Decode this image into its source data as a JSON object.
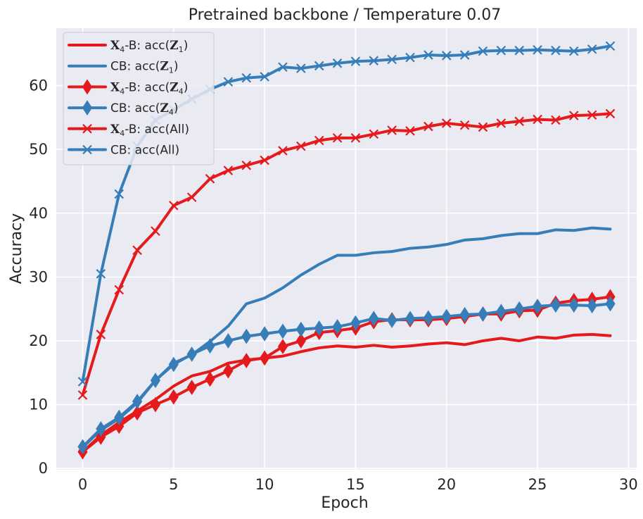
{
  "chart_data": {
    "type": "line",
    "title": "Pretrained backbone / Temperature 0.07",
    "xlabel": "Epoch",
    "ylabel": "Accuracy",
    "xlim": [
      -1.45,
      30.45
    ],
    "ylim": [
      -0.2,
      69
    ],
    "xticks": [
      0,
      5,
      10,
      15,
      20,
      25,
      30
    ],
    "yticks": [
      0,
      10,
      20,
      30,
      40,
      50,
      60
    ],
    "grid": true,
    "legend_position": "top-left",
    "x": [
      0,
      1,
      2,
      3,
      4,
      5,
      6,
      7,
      8,
      9,
      10,
      11,
      12,
      13,
      14,
      15,
      16,
      17,
      18,
      19,
      20,
      21,
      22,
      23,
      24,
      25,
      26,
      27,
      28,
      29
    ],
    "series": [
      {
        "name": "X4-B: acc(Z1)",
        "name_main": "X",
        "name_sub": "4",
        "name_mid": "-B: acc(",
        "name_var": "Z",
        "name_var_sub": "1",
        "name_end": ")",
        "color": "#e41a1c",
        "marker": "none",
        "values": [
          2.6,
          5.2,
          7.2,
          9.0,
          10.8,
          12.9,
          14.5,
          15.2,
          16.5,
          17.0,
          17.3,
          17.6,
          18.3,
          18.9,
          19.2,
          19.0,
          19.3,
          19.0,
          19.2,
          19.5,
          19.7,
          19.4,
          20.0,
          20.4,
          20.0,
          20.6,
          20.4,
          20.9,
          21.0,
          20.8
        ]
      },
      {
        "name": "CB: acc(Z1)",
        "name_main": "CB: acc(",
        "name_var": "Z",
        "name_var_sub": "1",
        "name_end": ")",
        "color": "#377eb8",
        "marker": "none",
        "values": [
          3.3,
          6.0,
          7.8,
          10.3,
          13.8,
          16.5,
          17.8,
          19.9,
          22.3,
          25.8,
          26.7,
          28.3,
          30.3,
          32.0,
          33.4,
          33.4,
          33.8,
          34.0,
          34.5,
          34.7,
          35.1,
          35.8,
          36.0,
          36.5,
          36.8,
          36.8,
          37.4,
          37.3,
          37.7,
          37.5
        ]
      },
      {
        "name": "X4-B: acc(Z4)",
        "name_main": "X",
        "name_sub": "4",
        "name_mid": "-B: acc(",
        "name_var": "Z",
        "name_var_sub": "4",
        "name_end": ")",
        "color": "#e41a1c",
        "marker": "diamond",
        "values": [
          2.6,
          4.9,
          6.6,
          8.7,
          10.0,
          11.2,
          12.7,
          14.0,
          15.3,
          16.9,
          17.3,
          19.1,
          20.0,
          21.3,
          21.6,
          22.0,
          23.0,
          23.3,
          23.3,
          23.3,
          23.5,
          23.8,
          24.2,
          24.2,
          24.7,
          24.8,
          25.9,
          26.3,
          26.5,
          26.9
        ]
      },
      {
        "name": "CB: acc(Z4)",
        "name_main": "CB: acc(",
        "name_var": "Z",
        "name_var_sub": "4",
        "name_end": ")",
        "color": "#377eb8",
        "marker": "diamond",
        "values": [
          3.4,
          6.2,
          8.0,
          10.5,
          13.8,
          16.3,
          17.9,
          19.2,
          20.0,
          20.7,
          21.1,
          21.5,
          21.8,
          22.0,
          22.2,
          22.8,
          23.5,
          23.2,
          23.5,
          23.6,
          23.8,
          24.1,
          24.2,
          24.6,
          25.0,
          25.4,
          25.6,
          25.6,
          25.5,
          25.8
        ]
      },
      {
        "name": "X4-B: acc(All)",
        "name_main": "X",
        "name_sub": "4",
        "name_mid": "-B: acc(All)",
        "color": "#e41a1c",
        "marker": "x",
        "values": [
          11.5,
          21.0,
          28.0,
          34.2,
          37.2,
          41.2,
          42.5,
          45.4,
          46.7,
          47.5,
          48.3,
          49.8,
          50.5,
          51.4,
          51.8,
          51.8,
          52.4,
          53.0,
          52.9,
          53.6,
          54.1,
          53.8,
          53.5,
          54.1,
          54.4,
          54.7,
          54.6,
          55.3,
          55.4,
          55.6
        ]
      },
      {
        "name": "CB: acc(All)",
        "name_main": "CB: acc(All)",
        "color": "#377eb8",
        "marker": "x",
        "values": [
          13.6,
          30.5,
          43.0,
          50.5,
          54.6,
          56.2,
          57.9,
          59.4,
          60.6,
          61.2,
          61.4,
          62.9,
          62.7,
          63.1,
          63.5,
          63.8,
          63.9,
          64.1,
          64.4,
          64.8,
          64.7,
          64.8,
          65.4,
          65.5,
          65.5,
          65.6,
          65.5,
          65.4,
          65.7,
          66.2
        ]
      }
    ]
  }
}
